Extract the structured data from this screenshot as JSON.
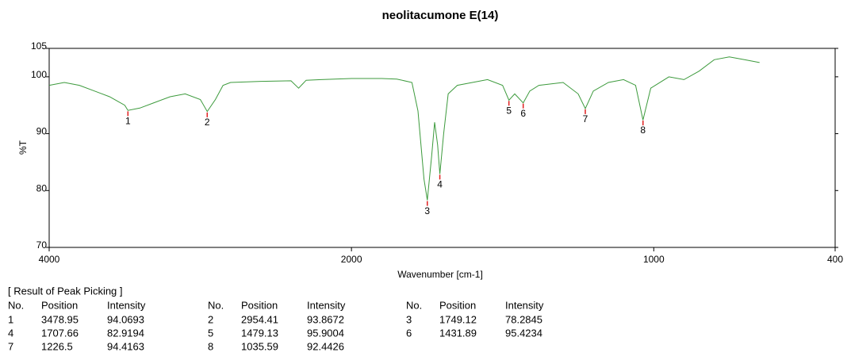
{
  "chart_data": {
    "type": "line",
    "title": "neolitacumone E(14)",
    "xlabel": "Wavenumber [cm-1]",
    "ylabel": "%T",
    "xlim": [
      4000,
      400
    ],
    "xscale": "split",
    "xsplit": 2000,
    "xticks": [
      4000,
      2000,
      1000,
      400
    ],
    "ylim": [
      70,
      105
    ],
    "yticks": [
      70,
      80,
      90,
      100,
      105
    ],
    "series": [
      {
        "color": "#3c9a3c",
        "x": [
          4000,
          3900,
          3800,
          3700,
          3600,
          3500,
          3478.95,
          3400,
          3300,
          3200,
          3100,
          3000,
          2954.41,
          2900,
          2850,
          2800,
          2600,
          2400,
          2350,
          2300,
          2200,
          2000,
          1900,
          1850,
          1800,
          1780,
          1760,
          1749.12,
          1735,
          1725,
          1715,
          1707.66,
          1695,
          1680,
          1650,
          1600,
          1550,
          1500,
          1479.13,
          1460,
          1431.89,
          1410,
          1380,
          1300,
          1250,
          1226.5,
          1200,
          1150,
          1100,
          1060,
          1035.59,
          1010,
          950,
          900,
          850,
          800,
          750,
          700,
          650
        ],
        "values": [
          98.5,
          99,
          98.5,
          97.5,
          96.5,
          95,
          94.1,
          94.5,
          95.5,
          96.5,
          97,
          96,
          93.9,
          96,
          98.5,
          99,
          99.2,
          99.3,
          98,
          99.4,
          99.5,
          99.7,
          99.7,
          99.6,
          99,
          94,
          82,
          78.3,
          86,
          92,
          88,
          82.9,
          90,
          97,
          98.5,
          99,
          99.5,
          98.5,
          95.9,
          97,
          95.4,
          97.5,
          98.5,
          99,
          97,
          94.4,
          97.5,
          99,
          99.5,
          98.5,
          92.4,
          98,
          100,
          99.5,
          101,
          103,
          103.5,
          103,
          102.5
        ]
      }
    ],
    "peak_marker_color": "#e02020",
    "peak_table": {
      "title": "[ Result of Peak Picking ]",
      "columns": [
        "No.",
        "Position",
        "Intensity"
      ],
      "peaks": [
        {
          "no": 1,
          "position": 3478.95,
          "intensity": 94.0693
        },
        {
          "no": 2,
          "position": 2954.41,
          "intensity": 93.8672
        },
        {
          "no": 3,
          "position": 1749.12,
          "intensity": 78.2845
        },
        {
          "no": 4,
          "position": 1707.66,
          "intensity": 82.9194
        },
        {
          "no": 5,
          "position": 1479.13,
          "intensity": 95.9004
        },
        {
          "no": 6,
          "position": 1431.89,
          "intensity": 95.4234
        },
        {
          "no": 7,
          "position": 1226.5,
          "intensity": 94.4163
        },
        {
          "no": 8,
          "position": 1035.59,
          "intensity": 92.4426
        }
      ]
    }
  }
}
